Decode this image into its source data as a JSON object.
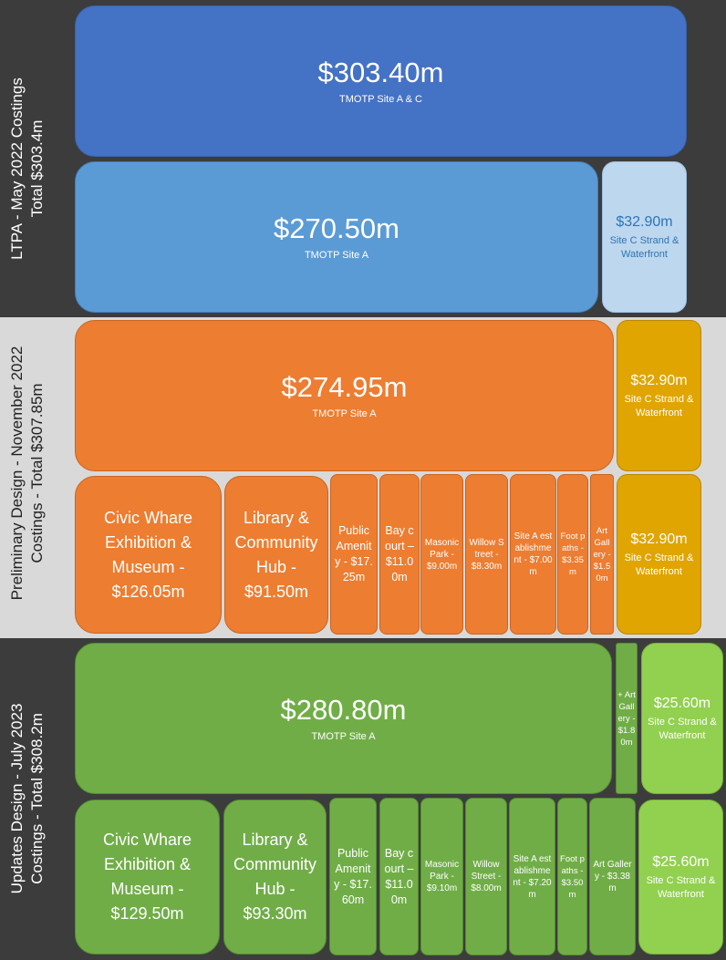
{
  "colors": {
    "dark_band": "#3c3c3c",
    "light_band": "#d9d9d9",
    "ltpa_top": "#4472c4",
    "ltpa_site_a": "#5b9bd5",
    "ltpa_site_c": "#bdd7ee",
    "prelim_orange": "#ed7d31",
    "prelim_gold": "#e0a500",
    "update_green": "#70ad47",
    "update_light_green": "#92d050"
  },
  "ltpa": {
    "label_line1": "LTPA - May 2022 Costings",
    "label_line2": "Total $303.4m",
    "total": {
      "amount": "$303.40m",
      "name": "TMOTP Site A & C",
      "value": 303.4
    },
    "site_a": {
      "amount": "$270.50m",
      "name": "TMOTP Site A",
      "value": 270.5
    },
    "site_c": {
      "amount": "$32.90m",
      "name": "Site C Strand & Waterfront",
      "value": 32.9
    }
  },
  "prelim": {
    "label_line1": "Preliminary Design - November 2022",
    "label_line2": "Costings - Total $307.85m",
    "site_a": {
      "amount": "$274.95m",
      "name": "TMOTP Site A",
      "value": 274.95
    },
    "site_c_top": {
      "amount": "$32.90m",
      "name": "Site C Strand & Waterfront",
      "value": 32.9
    },
    "site_c_bottom": {
      "amount": "$32.90m",
      "name": "Site C Strand & Waterfront",
      "value": 32.9
    },
    "items": [
      {
        "text": "Civic Whare Exhibition & Museum - $126.05m",
        "value": 126.05
      },
      {
        "text": "Library & Community Hub - $91.50m",
        "value": 91.5
      },
      {
        "text": "Public Amenity - $17.25m",
        "value": 17.25
      },
      {
        "text": "Bay court – $11.00m",
        "value": 11.0
      },
      {
        "text": "Masonic Park - $9.00m",
        "value": 9.0
      },
      {
        "text": "Willow Street - $8.30m",
        "value": 8.3
      },
      {
        "text": "Site A establishment - $7.00m",
        "value": 7.0
      },
      {
        "text": "Foot paths - $3.35m",
        "value": 3.35
      },
      {
        "text": "Art Gallery - $1.50m",
        "value": 1.5
      }
    ]
  },
  "update": {
    "label_line1": "Updates Design - July 2023",
    "label_line2": "Costings - Total $308.2m",
    "site_a": {
      "amount": "$280.80m",
      "name": "TMOTP Site A",
      "value": 280.8
    },
    "art_gallery_extra": {
      "text": "+ Art Gallery - $1.80m",
      "value": 1.8
    },
    "site_c_top": {
      "amount": "$25.60m",
      "name": "Site C Strand & Waterfront",
      "value": 25.6
    },
    "site_c_bottom": {
      "amount": "$25.60m",
      "name": "Site C Strand & Waterfront",
      "value": 25.6
    },
    "items": [
      {
        "text": "Civic Whare Exhibition & Museum - $129.50m",
        "value": 129.5
      },
      {
        "text": "Library & Community Hub - $93.30m",
        "value": 93.3
      },
      {
        "text": "Public Amenity - $17.60m",
        "value": 17.6
      },
      {
        "text": "Bay court – $11.00m",
        "value": 11.0
      },
      {
        "text": "Masonic Park - $9.10m",
        "value": 9.1
      },
      {
        "text": "Willow Street - $8.00m",
        "value": 8.0
      },
      {
        "text": "Site A establishment - $7.20m",
        "value": 7.2
      },
      {
        "text": "Foot paths - $3.50m",
        "value": 3.5
      },
      {
        "text": "Art Gallery - $3.38m",
        "value": 3.38
      }
    ]
  }
}
